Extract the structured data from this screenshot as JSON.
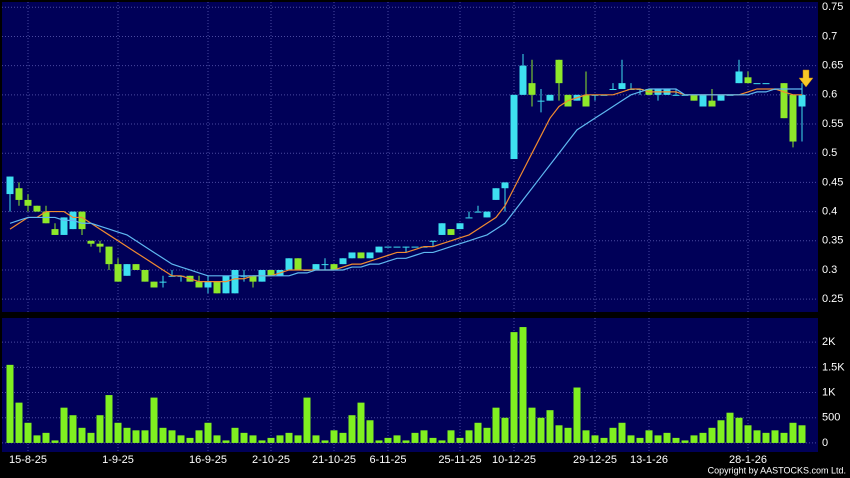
{
  "chart_data": {
    "type": "candlestick",
    "categories": [
      null,
      null,
      "15-8-25",
      null,
      null,
      null,
      null,
      null,
      null,
      null,
      null,
      null,
      "1-9-25",
      null,
      null,
      null,
      null,
      null,
      null,
      null,
      null,
      null,
      "16-9-25",
      null,
      null,
      null,
      null,
      null,
      null,
      "2-10-25",
      null,
      null,
      null,
      null,
      null,
      null,
      "21-10-25",
      null,
      null,
      null,
      null,
      null,
      "6-11-25",
      null,
      null,
      null,
      null,
      null,
      null,
      null,
      "25-11-25",
      null,
      null,
      null,
      null,
      null,
      "10-12-25",
      null,
      null,
      null,
      null,
      null,
      null,
      null,
      null,
      "29-12-25",
      null,
      null,
      null,
      null,
      null,
      "13-1-26",
      null,
      null,
      null,
      null,
      null,
      null,
      null,
      null,
      null,
      null,
      "28-1-26",
      null,
      null,
      null,
      null,
      null,
      null
    ],
    "candles": [
      [
        0.43,
        0.46,
        0.4,
        0.46
      ],
      [
        0.44,
        0.45,
        0.41,
        0.42
      ],
      [
        0.42,
        0.43,
        0.4,
        0.41
      ],
      [
        0.41,
        0.41,
        0.4,
        0.4
      ],
      [
        0.4,
        0.41,
        0.38,
        0.38
      ],
      [
        0.37,
        0.38,
        0.36,
        0.36
      ],
      [
        0.36,
        0.39,
        0.36,
        0.39
      ],
      [
        0.37,
        0.4,
        0.37,
        0.4
      ],
      [
        0.4,
        0.4,
        0.36,
        0.37
      ],
      [
        0.35,
        0.35,
        0.34,
        0.345
      ],
      [
        0.345,
        0.35,
        0.33,
        0.34
      ],
      [
        0.34,
        0.34,
        0.3,
        0.31
      ],
      [
        0.31,
        0.32,
        0.28,
        0.28
      ],
      [
        0.29,
        0.31,
        0.29,
        0.31
      ],
      [
        0.31,
        0.31,
        0.3,
        0.3
      ],
      [
        0.3,
        0.3,
        0.28,
        0.28
      ],
      [
        0.28,
        0.28,
        0.27,
        0.27
      ],
      [
        0.28,
        0.29,
        0.27,
        0.28
      ],
      [
        0.29,
        0.3,
        0.29,
        0.29
      ],
      [
        0.29,
        0.29,
        0.28,
        0.29
      ],
      [
        0.29,
        0.29,
        0.28,
        0.28
      ],
      [
        0.28,
        0.29,
        0.27,
        0.27
      ],
      [
        0.27,
        0.29,
        0.26,
        0.28
      ],
      [
        0.28,
        0.28,
        0.26,
        0.26
      ],
      [
        0.26,
        0.29,
        0.26,
        0.29
      ],
      [
        0.26,
        0.3,
        0.26,
        0.3
      ],
      [
        0.29,
        0.3,
        0.28,
        0.29
      ],
      [
        0.29,
        0.29,
        0.27,
        0.28
      ],
      [
        0.28,
        0.3,
        0.28,
        0.3
      ],
      [
        0.3,
        0.3,
        0.29,
        0.29
      ],
      [
        0.29,
        0.3,
        0.29,
        0.3
      ],
      [
        0.3,
        0.32,
        0.3,
        0.32
      ],
      [
        0.32,
        0.32,
        0.3,
        0.3
      ],
      [
        0.3,
        0.3,
        0.3,
        0.3
      ],
      [
        0.3,
        0.31,
        0.3,
        0.31
      ],
      [
        0.31,
        0.32,
        0.3,
        0.31
      ],
      [
        0.31,
        0.31,
        0.3,
        0.3
      ],
      [
        0.31,
        0.32,
        0.31,
        0.32
      ],
      [
        0.32,
        0.33,
        0.32,
        0.33
      ],
      [
        0.33,
        0.33,
        0.32,
        0.32
      ],
      [
        0.32,
        0.33,
        0.32,
        0.33
      ],
      [
        0.33,
        0.34,
        0.33,
        0.34
      ],
      [
        0.34,
        0.34,
        0.34,
        0.34
      ],
      [
        0.34,
        0.34,
        0.34,
        0.34
      ],
      [
        0.34,
        0.34,
        0.33,
        0.34
      ],
      [
        0.34,
        0.34,
        0.34,
        0.34
      ],
      [
        0.34,
        0.34,
        0.34,
        0.34
      ],
      [
        0.35,
        0.35,
        0.34,
        0.35
      ],
      [
        0.36,
        0.38,
        0.36,
        0.38
      ],
      [
        0.37,
        0.37,
        0.36,
        0.36
      ],
      [
        0.37,
        0.38,
        0.37,
        0.38
      ],
      [
        0.39,
        0.4,
        0.39,
        0.39
      ],
      [
        0.4,
        0.41,
        0.4,
        0.4
      ],
      [
        0.39,
        0.4,
        0.39,
        0.4
      ],
      [
        0.42,
        0.44,
        0.42,
        0.44
      ],
      [
        0.44,
        0.45,
        0.4,
        0.45
      ],
      [
        0.49,
        0.6,
        0.49,
        0.6
      ],
      [
        0.6,
        0.67,
        0.6,
        0.65
      ],
      [
        0.62,
        0.66,
        0.58,
        0.6
      ],
      [
        0.59,
        0.61,
        0.57,
        0.59
      ],
      [
        0.59,
        0.6,
        0.59,
        0.6
      ],
      [
        0.66,
        0.66,
        0.59,
        0.62
      ],
      [
        0.6,
        0.6,
        0.58,
        0.58
      ],
      [
        0.59,
        0.6,
        0.59,
        0.6
      ],
      [
        0.6,
        0.64,
        0.58,
        0.58
      ],
      [
        0.6,
        0.6,
        0.59,
        0.6
      ],
      [
        0.6,
        0.6,
        0.6,
        0.6
      ],
      [
        0.61,
        0.62,
        0.61,
        0.61
      ],
      [
        0.61,
        0.66,
        0.61,
        0.62
      ],
      [
        0.61,
        0.62,
        0.61,
        0.61
      ],
      [
        0.61,
        0.61,
        0.6,
        0.61
      ],
      [
        0.61,
        0.61,
        0.6,
        0.6
      ],
      [
        0.6,
        0.61,
        0.59,
        0.61
      ],
      [
        0.6,
        0.61,
        0.6,
        0.61
      ],
      [
        0.6,
        0.61,
        0.6,
        0.6
      ],
      [
        0.6,
        0.6,
        0.6,
        0.6
      ],
      [
        0.6,
        0.6,
        0.59,
        0.59
      ],
      [
        0.58,
        0.6,
        0.58,
        0.6
      ],
      [
        0.59,
        0.61,
        0.58,
        0.58
      ],
      [
        0.59,
        0.6,
        0.59,
        0.6
      ],
      [
        0.6,
        0.6,
        0.6,
        0.6
      ],
      [
        0.62,
        0.66,
        0.62,
        0.64
      ],
      [
        0.63,
        0.64,
        0.62,
        0.62
      ],
      [
        0.62,
        0.62,
        0.62,
        0.62
      ],
      [
        0.62,
        0.62,
        0.62,
        0.62
      ],
      [
        0.61,
        0.61,
        0.61,
        0.61
      ],
      [
        0.62,
        0.62,
        0.56,
        0.56
      ],
      [
        0.6,
        0.6,
        0.51,
        0.52
      ],
      [
        0.58,
        0.62,
        0.52,
        0.6
      ]
    ],
    "up_color": "#3ee0f0",
    "down_color": "#8ee82a",
    "ylim": [
      0.228,
      0.759
    ],
    "yticks": [
      0.25,
      0.3,
      0.35,
      0.4,
      0.45,
      0.5,
      0.55,
      0.6,
      0.65,
      0.7,
      0.75
    ],
    "grid": true,
    "series": [
      {
        "color": "#f08a30",
        "values": [
          0.37,
          0.38,
          0.39,
          0.39,
          0.4,
          0.4,
          0.4,
          0.39,
          0.39,
          0.38,
          0.37,
          0.36,
          0.35,
          0.34,
          0.33,
          0.32,
          0.31,
          0.3,
          0.29,
          0.29,
          0.285,
          0.28,
          0.28,
          0.28,
          0.28,
          0.285,
          0.285,
          0.29,
          0.29,
          0.29,
          0.295,
          0.3,
          0.3,
          0.3,
          0.3,
          0.3,
          0.3,
          0.305,
          0.31,
          0.31,
          0.315,
          0.32,
          0.325,
          0.33,
          0.33,
          0.335,
          0.34,
          0.34,
          0.345,
          0.35,
          0.355,
          0.36,
          0.37,
          0.38,
          0.39,
          0.41,
          0.44,
          0.47,
          0.5,
          0.53,
          0.56,
          0.58,
          0.59,
          0.595,
          0.6,
          0.6,
          0.6,
          0.6,
          0.605,
          0.61,
          0.61,
          0.605,
          0.605,
          0.605,
          0.605,
          0.6,
          0.6,
          0.6,
          0.6,
          0.6,
          0.6,
          0.6,
          0.605,
          0.61,
          0.61,
          0.61,
          0.605,
          0.6,
          0.6
        ]
      },
      {
        "color": "#5fb8f0",
        "values": [
          0.38,
          0.385,
          0.39,
          0.39,
          0.39,
          0.39,
          0.385,
          0.385,
          0.38,
          0.38,
          0.375,
          0.37,
          0.365,
          0.36,
          0.35,
          0.34,
          0.33,
          0.32,
          0.31,
          0.305,
          0.3,
          0.295,
          0.29,
          0.29,
          0.29,
          0.29,
          0.29,
          0.29,
          0.29,
          0.29,
          0.29,
          0.29,
          0.295,
          0.295,
          0.3,
          0.3,
          0.3,
          0.3,
          0.305,
          0.305,
          0.31,
          0.31,
          0.315,
          0.32,
          0.32,
          0.325,
          0.33,
          0.33,
          0.335,
          0.34,
          0.345,
          0.35,
          0.355,
          0.36,
          0.37,
          0.38,
          0.4,
          0.42,
          0.44,
          0.46,
          0.48,
          0.5,
          0.52,
          0.54,
          0.55,
          0.56,
          0.57,
          0.58,
          0.59,
          0.6,
          0.605,
          0.61,
          0.61,
          0.61,
          0.61,
          0.6,
          0.6,
          0.6,
          0.6,
          0.6,
          0.6,
          0.6,
          0.6,
          0.605,
          0.605,
          0.61,
          0.61,
          0.61,
          0.61
        ]
      }
    ],
    "volume": {
      "type": "bar",
      "color": "#80f020",
      "values": [
        1550,
        800,
        400,
        150,
        200,
        50,
        700,
        550,
        300,
        200,
        550,
        950,
        400,
        300,
        250,
        250,
        900,
        300,
        250,
        150,
        100,
        250,
        400,
        150,
        50,
        300,
        200,
        150,
        50,
        100,
        150,
        200,
        150,
        900,
        150,
        50,
        250,
        200,
        550,
        800,
        450,
        50,
        100,
        150,
        50,
        200,
        250,
        100,
        50,
        250,
        100,
        250,
        400,
        300,
        700,
        500,
        2200,
        2300,
        700,
        500,
        650,
        350,
        300,
        1100,
        250,
        150,
        100,
        300,
        400,
        150,
        100,
        250,
        150,
        200,
        100,
        50,
        150,
        200,
        300,
        450,
        600,
        500,
        350,
        250,
        200,
        250,
        200,
        400,
        350
      ],
      "ylim": [
        -180,
        2480
      ],
      "yticks": [
        0,
        500,
        {
          "value": 1000,
          "label": "1K"
        },
        {
          "value": 1500,
          "label": "1.5K"
        },
        {
          "value": 2000,
          "label": "2K"
        }
      ]
    },
    "copyright": "Copyright by AASTOCKS.com Ltd."
  }
}
